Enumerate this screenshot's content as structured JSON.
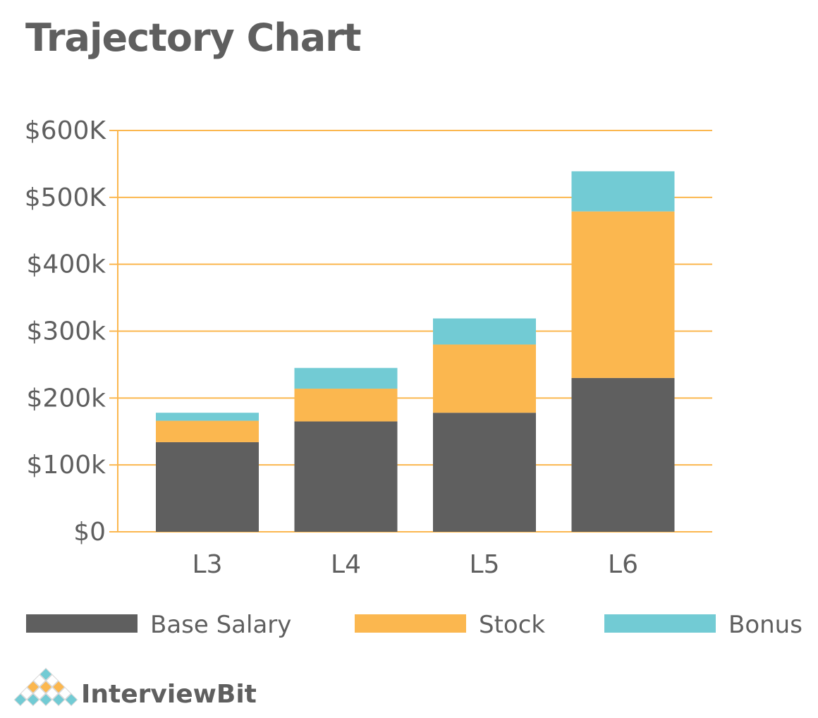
{
  "chart_data": {
    "type": "bar",
    "stacked": true,
    "title": "Trajectory Chart",
    "xlabel": "",
    "ylabel": "",
    "categories": [
      "L3",
      "L4",
      "L5",
      "L6"
    ],
    "series": [
      {
        "name": "Base Salary",
        "color": "#5f5f5f",
        "values": [
          134000,
          165000,
          178000,
          230000
        ]
      },
      {
        "name": "Stock",
        "color": "#fbb74f",
        "values": [
          32000,
          49000,
          102000,
          249000
        ]
      },
      {
        "name": "Bonus",
        "color": "#72cbd4",
        "values": [
          12000,
          31000,
          39000,
          60000
        ]
      }
    ],
    "ylim": [
      0,
      600000
    ],
    "yticks": [
      0,
      100000,
      200000,
      300000,
      400000,
      500000,
      600000
    ],
    "ytick_labels": [
      "$0",
      "$100k",
      "$200k",
      "$300k",
      "$400k",
      "$500K",
      "$600K"
    ],
    "grid": true,
    "grid_color": "#fbb74f",
    "legend_position": "bottom"
  },
  "brand": {
    "name": "InterviewBit"
  }
}
